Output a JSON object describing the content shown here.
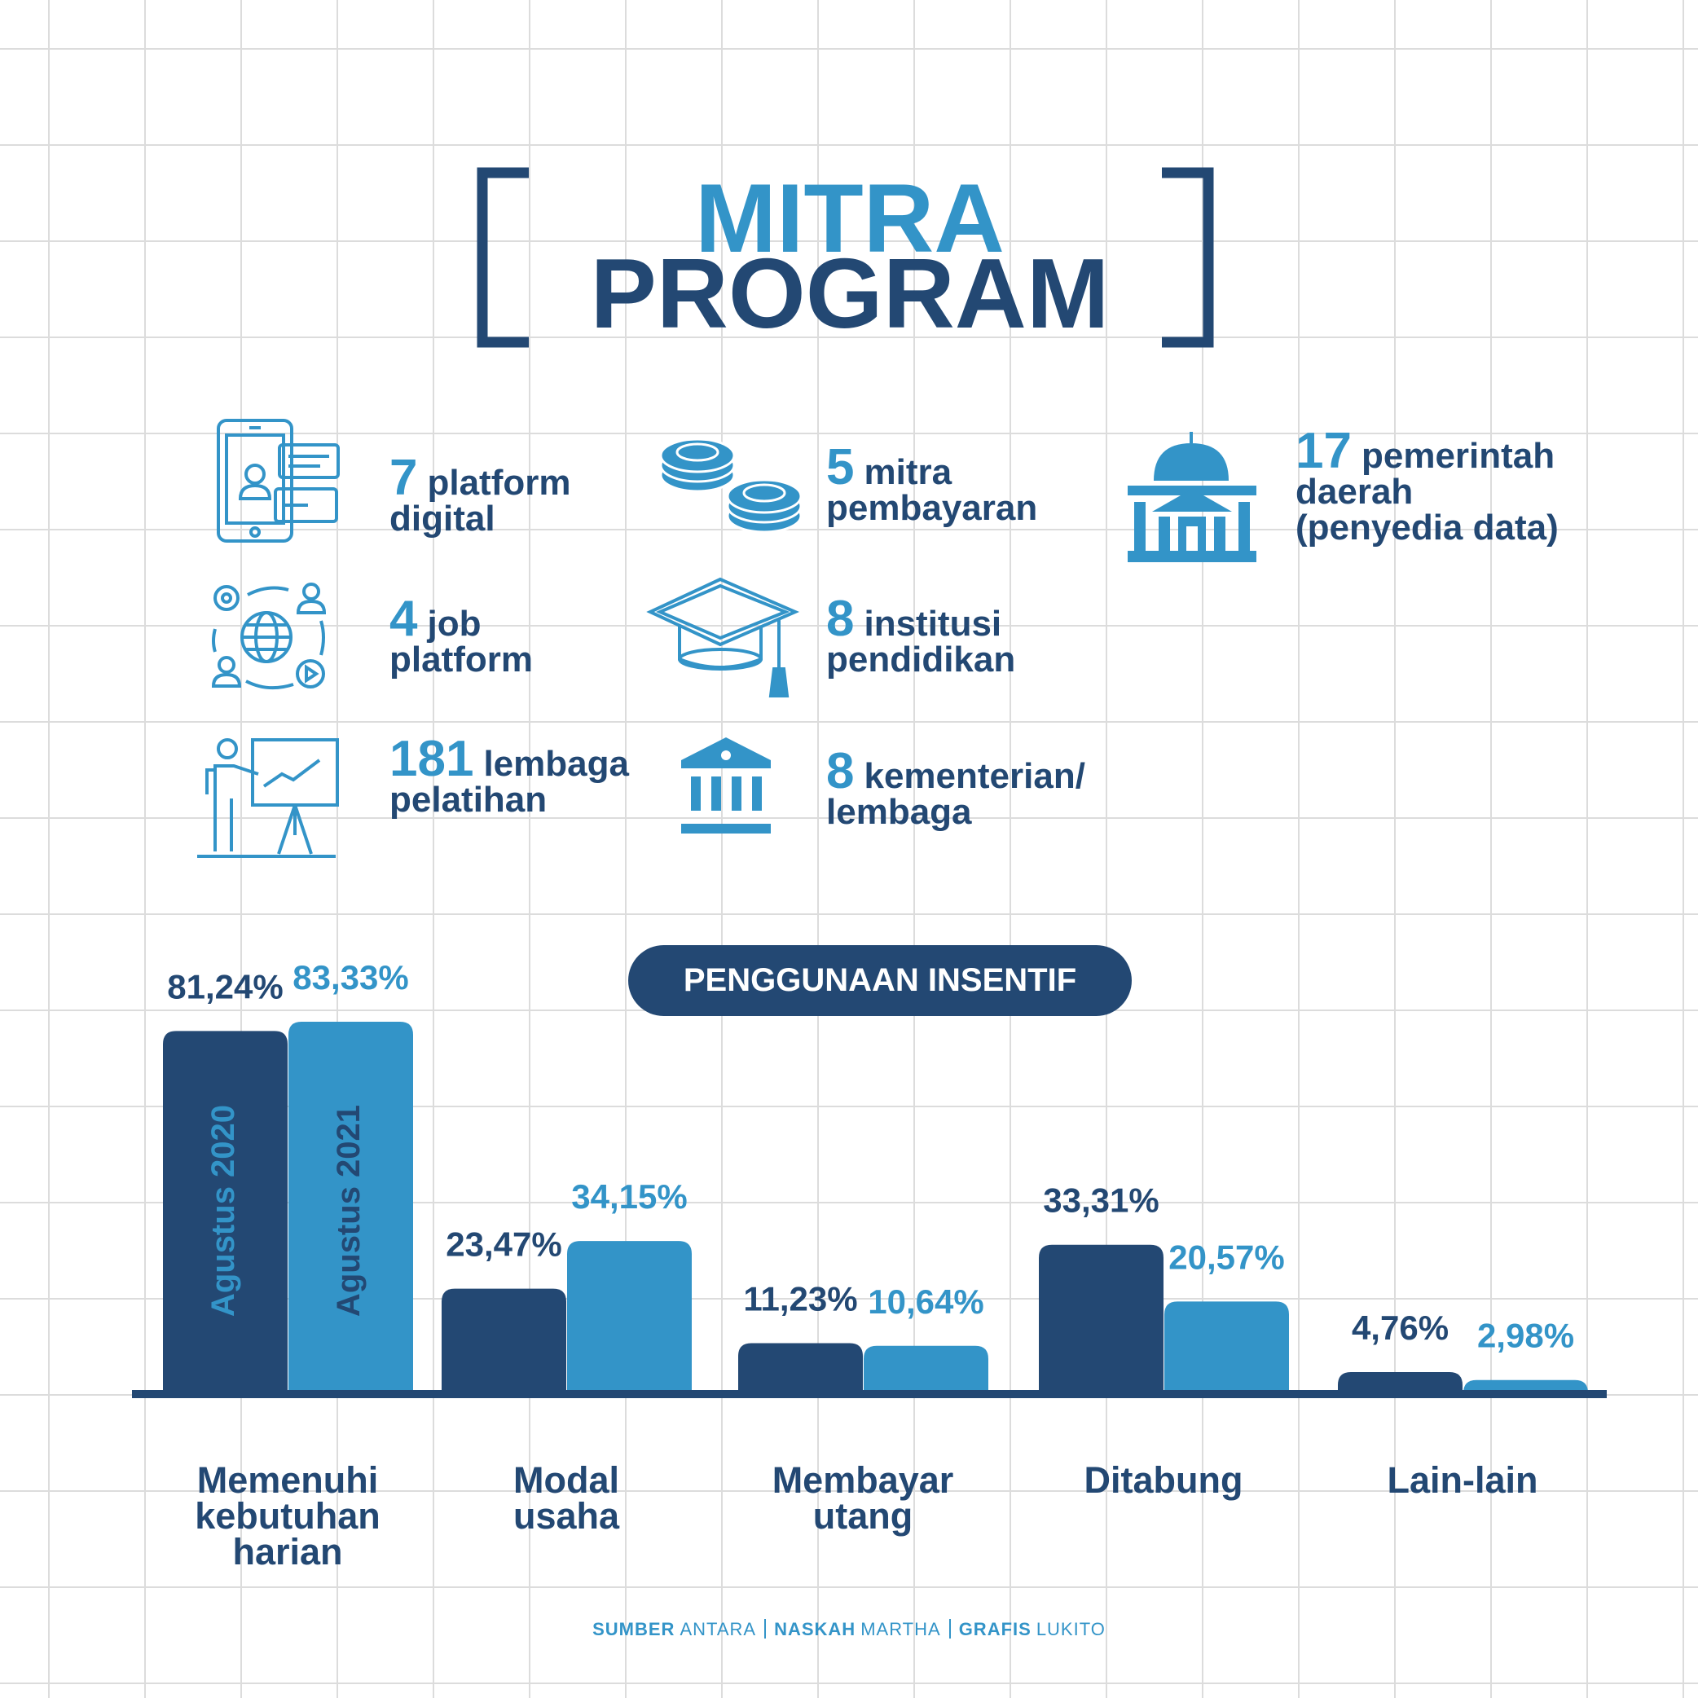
{
  "header": {
    "title_top": "MITRA",
    "title_bottom": "PROGRAM"
  },
  "partners": [
    {
      "number": 7,
      "text": "platform digital"
    },
    {
      "number": 4,
      "text": "job platform"
    },
    {
      "number": 181,
      "text": "lembaga pelatihan"
    },
    {
      "number": 5,
      "text": "mitra pembayaran"
    },
    {
      "number": 8,
      "text": "institusi pendidikan"
    },
    {
      "number": 8,
      "text": "kementerian/ lembaga"
    },
    {
      "number": 17,
      "text": "pemerintah daerah (penyedia data)"
    }
  ],
  "chart_data": {
    "type": "bar",
    "title": "PENGGUNAAN INSENTIF",
    "categories": [
      "Memenuhi kebutuhan harian",
      "Modal usaha",
      "Membayar utang",
      "Ditabung",
      "Lain-lain"
    ],
    "series": [
      {
        "name": "Agustus 2020",
        "color": "#234873",
        "values": [
          81.24,
          23.47,
          11.23,
          33.31,
          4.76
        ],
        "value_labels": [
          "81,24%",
          "23,47%",
          "11,23%",
          "33,31%",
          "4,76%"
        ]
      },
      {
        "name": "Agustus 2021",
        "color": "#3394c8",
        "values": [
          83.33,
          34.15,
          10.64,
          20.57,
          2.98
        ],
        "value_labels": [
          "83,33%",
          "34,15%",
          "10,64%",
          "20,57%",
          "2,98%"
        ]
      }
    ]
  },
  "footer": [
    {
      "label": "SUMBER",
      "value": "ANTARA"
    },
    {
      "label": "NASKAH",
      "value": "MARTHA"
    },
    {
      "label": "GRAFIS",
      "value": "LUKITO"
    }
  ]
}
